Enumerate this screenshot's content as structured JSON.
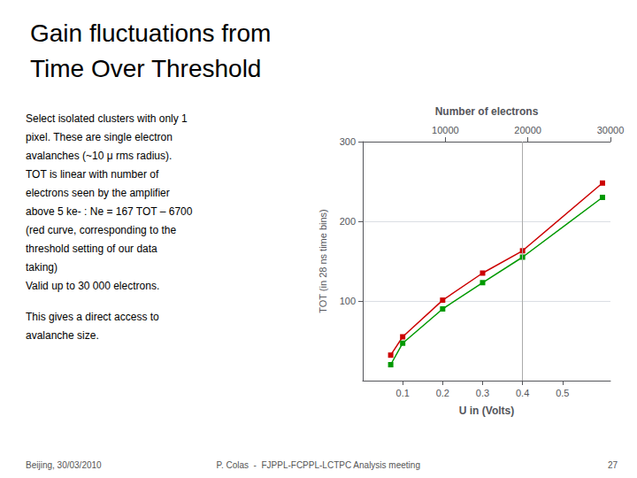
{
  "chart_data": {
    "type": "line",
    "title": "Gain fluctuations from\nTime Over Threshold",
    "annotations": [
      [
        "Select isolated clusters with only 1",
        "pixel. These are single electron",
        "avalanches (~10 μ rms radius).",
        "TOT is linear with number of",
        "electrons seen by the amplifier",
        "above 5 ke- : Ne = 167 TOT – 6700",
        "(red curve, corresponding to the",
        "threshold setting of our data",
        "taking)",
        "Valid up to 30 000 electrons."
      ],
      [
        "This gives a direct access to",
        "avalanche size."
      ]
    ],
    "footer": [
      "Beijing, 30/03/2010",
      "P. Colas  -  FJPPL-FCPPL-LCTPC Analysis meeting",
      "27"
    ],
    "xlabel": "U in (Volts)",
    "ylabel": "TOT (in 28 ns time bins)",
    "x2label": "Number of electrons",
    "x": [
      0.07,
      0.1,
      0.2,
      0.3,
      0.4,
      0.6
    ],
    "series": [
      {
        "color": "#cc0000",
        "values": [
          32,
          55,
          101,
          135,
          163,
          248
        ]
      },
      {
        "color": "#009900",
        "values": [
          20,
          47,
          90,
          123,
          155,
          230
        ]
      }
    ],
    "marker": "square",
    "xlim": [
      0.0,
      0.62
    ],
    "xticks": [
      0.1,
      0.2,
      0.3,
      0.4,
      0.5
    ],
    "ylim": [
      0,
      300
    ],
    "yticks": [
      100,
      200,
      300
    ],
    "x2lim": [
      0,
      30000
    ],
    "x2ticks": [
      10000,
      20000,
      30000
    ],
    "vline": 0.4,
    "grid": true
  }
}
